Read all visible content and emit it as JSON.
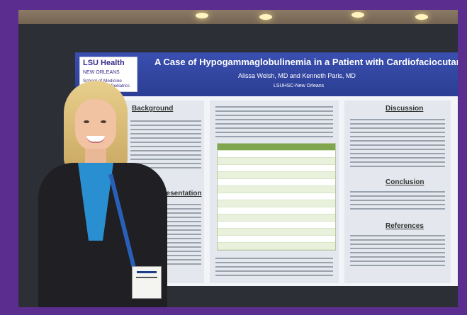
{
  "poster": {
    "logo": {
      "name": "LSU Health",
      "line2": "NEW ORLEANS",
      "line3": "School of Medicine",
      "line4": "Department of Pediatrics"
    },
    "title": "A Case of Hypogammaglobulinemia in a Patient with Cardiofaciocutaneous Syndrome",
    "authors": "Alissa Welsh, MD and Kenneth Paris, MD",
    "affiliation": "LSUHSC-New Orleans",
    "sections": {
      "background": "Background",
      "presentation": "Presentation",
      "discussion": "Discussion",
      "conclusion": "Conclusion",
      "references": "References"
    }
  },
  "colors": {
    "frame": "#5b2d8e",
    "poster_header": "#2b3e93",
    "table_header": "#7fa64c"
  }
}
